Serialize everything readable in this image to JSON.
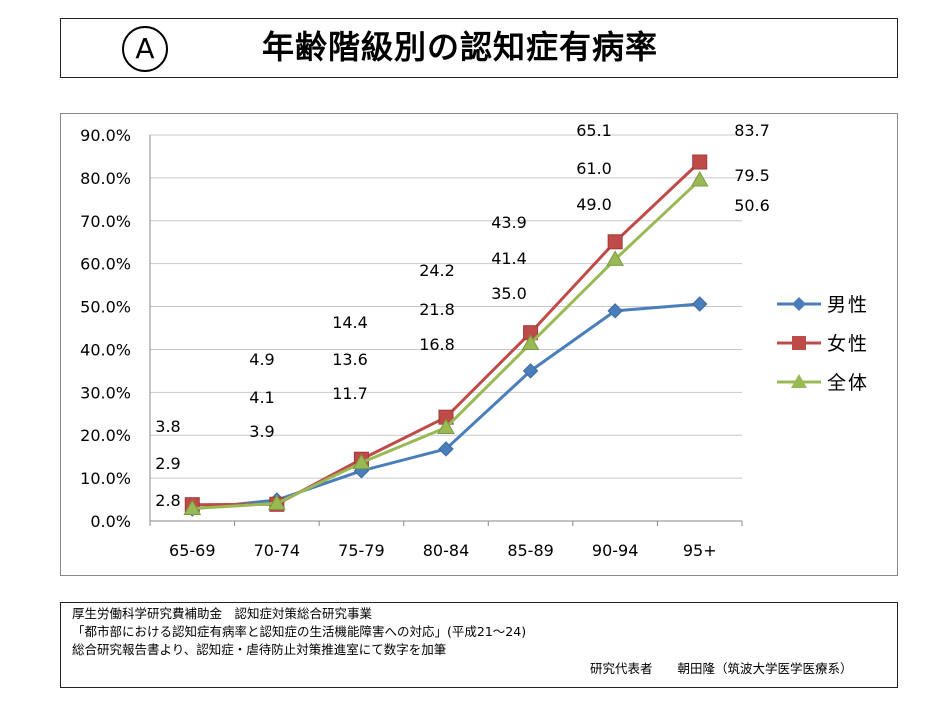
{
  "header": {
    "circle_label": "A",
    "title": "年齢階級別の認知症有病率"
  },
  "chart_data": {
    "type": "line",
    "title": "",
    "xlabel": "",
    "ylabel": "",
    "categories": [
      "65-69",
      "70-74",
      "75-79",
      "80-84",
      "85-89",
      "90-94",
      "95+"
    ],
    "y_ticks": [
      "0.0%",
      "10.0%",
      "20.0%",
      "30.0%",
      "40.0%",
      "50.0%",
      "60.0%",
      "70.0%",
      "80.0%",
      "90.0%"
    ],
    "ylim": [
      0,
      90
    ],
    "grid": true,
    "legend_position": "right",
    "series": [
      {
        "name": "男性",
        "color": "#4a7ebb",
        "marker": "diamond",
        "values": [
          2.8,
          4.9,
          11.7,
          16.8,
          35.0,
          49.0,
          50.6
        ]
      },
      {
        "name": "女性",
        "color": "#be4b48",
        "marker": "square",
        "values": [
          3.8,
          3.9,
          14.4,
          24.2,
          43.9,
          65.1,
          83.7
        ]
      },
      {
        "name": "全体",
        "color": "#98b954",
        "marker": "triangle",
        "values": [
          2.9,
          4.1,
          13.6,
          21.8,
          41.4,
          61.0,
          79.5
        ]
      }
    ],
    "annotations": [
      [
        "3.8",
        "2.9",
        "2.8"
      ],
      [
        "4.9",
        "4.1",
        "3.9"
      ],
      [
        "14.4",
        "13.6",
        "11.7"
      ],
      [
        "24.2",
        "21.8",
        "16.8"
      ],
      [
        "43.9",
        "41.4",
        "35.0"
      ],
      [
        "65.1",
        "61.0",
        "49.0"
      ],
      [
        "83.7",
        "79.5",
        "50.6"
      ]
    ]
  },
  "footer": {
    "line1": "厚生労働科学研究費補助金　認知症対策総合研究事業",
    "line2": "「都市部における認知症有病率と認知症の生活機能障害への対応」(平成21～24)",
    "line3": "総合研究報告書より、認知症・虐待防止対策推進室にて数字を加筆",
    "line4": "研究代表者　　朝田隆（筑波大学医学医療系）"
  }
}
